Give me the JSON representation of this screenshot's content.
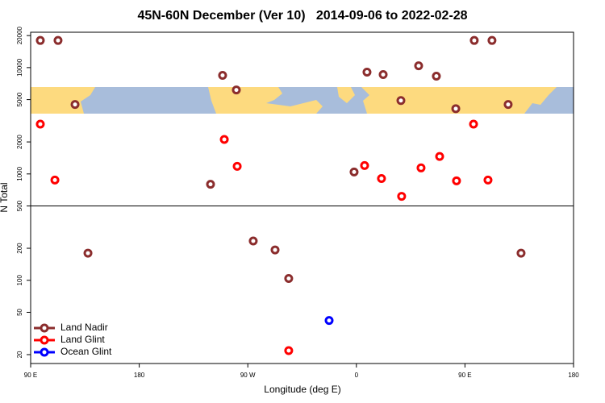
{
  "chart_data": {
    "type": "scatter",
    "title": "45N-60N December (Ver 10)   2014-09-06 to 2022-02-28",
    "x_label": "Longitude (deg E)",
    "y_label": "N Total",
    "log_y": true,
    "xlim": [
      90,
      540
    ],
    "ylim": [
      16.5,
      21500
    ],
    "xticks": [
      {
        "value": 90,
        "label": "90 E"
      },
      180,
      {
        "value": 270,
        "label": "90 W"
      },
      {
        "value": 360,
        "label": "0"
      },
      {
        "value": 450,
        "label": "90 E"
      },
      {
        "value": 540,
        "label": "180"
      }
    ],
    "yticks": [
      20,
      50,
      100,
      200,
      500,
      1000,
      2000,
      5000,
      10000,
      20000
    ],
    "hline": 500,
    "legend": "lower left",
    "series": [
      {
        "name": "Land Nadir",
        "color": "#8b2d2d",
        "x": [
          98.0,
          112.7,
          126.8,
          137.5,
          249.1,
          260.5,
          239.1,
          274.5,
          292.6,
          303.9,
          358.1,
          368.8,
          382.2,
          396.9,
          411.6,
          426.3,
          442.4,
          457.7,
          472.4,
          485.8,
          496.5
        ],
        "values": [
          18000,
          18000,
          4500,
          180,
          8450,
          6160,
          800,
          234,
          193,
          104,
          1044,
          9060,
          8600,
          4900,
          10400,
          8300,
          4110,
          18000,
          18000,
          4500,
          180
        ]
      },
      {
        "name": "Land Glint",
        "color": "#ff0000",
        "x": [
          98.0,
          110.1,
          250.5,
          261.2,
          303.9,
          366.8,
          380.8,
          397.5,
          413.6,
          429.0,
          443.0,
          457.1,
          469.1
        ],
        "values": [
          2940,
          876,
          2110,
          1180,
          21.8,
          1200,
          906,
          616,
          1140,
          1460,
          861,
          2940,
          876
        ]
      },
      {
        "name": "Ocean Glint",
        "color": "#0000ff",
        "x": [
          337.4
        ],
        "values": [
          41.9
        ]
      }
    ]
  }
}
